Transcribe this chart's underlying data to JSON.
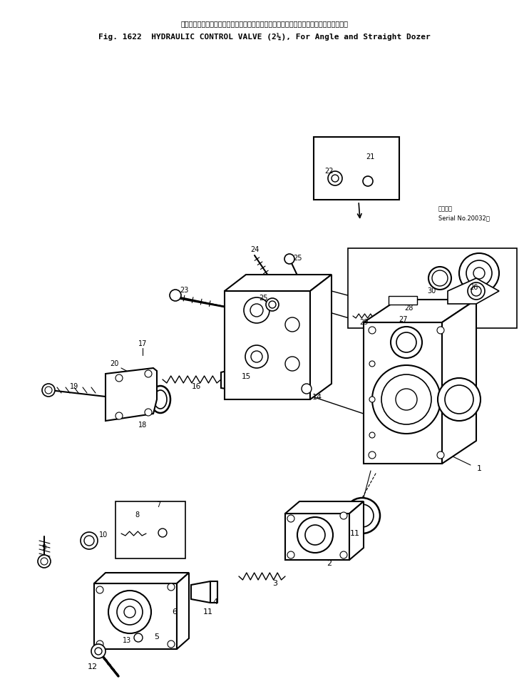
{
  "title_jp": "ハイドロリック　コントロール　バルブ　　　アングル　および　ストレート　ドーザ用",
  "title_en": "Fig. 1622  HYDRAULIC CONTROL VALVE (2½), For Angle and Straight Dozer",
  "serial_jp": "適用号機",
  "serial_en": "Serial No.20032～",
  "bg_color": "#ffffff",
  "fg_color": "#000000",
  "figsize": [
    7.42,
    9.73
  ],
  "dpi": 100
}
